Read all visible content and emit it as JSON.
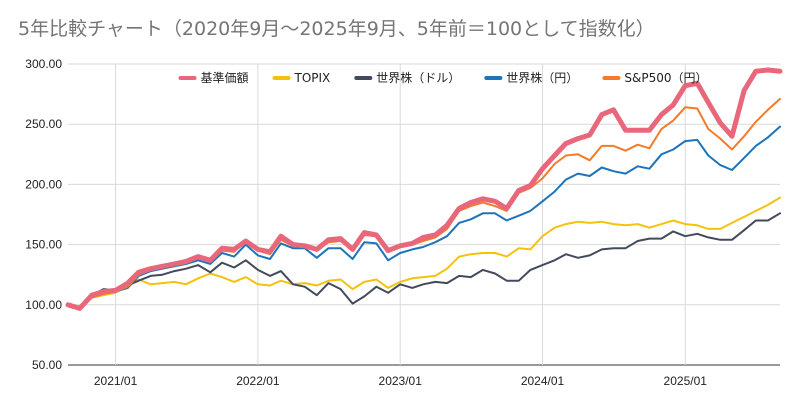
{
  "chart_data": {
    "type": "line",
    "title": "5年比較チャート（2020年9月〜2025年9月、5年前＝100として指数化）",
    "ylim": [
      50,
      300
    ],
    "y_ticks": [
      50,
      100,
      150,
      200,
      250,
      300
    ],
    "y_tick_labels": [
      "50.00",
      "100.00",
      "150.00",
      "200.00",
      "250.00",
      "300.00"
    ],
    "x_ticks": [
      "2021-01",
      "2022-01",
      "2023-01",
      "2024-01",
      "2025-01"
    ],
    "x_tick_labels": [
      "2021/01",
      "2022/01",
      "2023/01",
      "2024/01",
      "2025/01"
    ],
    "grid": true,
    "legend": "top",
    "x": [
      "2020-09",
      "2020-10",
      "2020-11",
      "2020-12",
      "2021-01",
      "2021-02",
      "2021-03",
      "2021-04",
      "2021-05",
      "2021-06",
      "2021-07",
      "2021-08",
      "2021-09",
      "2021-10",
      "2021-11",
      "2021-12",
      "2022-01",
      "2022-02",
      "2022-03",
      "2022-04",
      "2022-05",
      "2022-06",
      "2022-07",
      "2022-08",
      "2022-09",
      "2022-10",
      "2022-11",
      "2022-12",
      "2023-01",
      "2023-02",
      "2023-03",
      "2023-04",
      "2023-05",
      "2023-06",
      "2023-07",
      "2023-08",
      "2023-09",
      "2023-10",
      "2023-11",
      "2023-12",
      "2024-01",
      "2024-02",
      "2024-03",
      "2024-04",
      "2024-05",
      "2024-06",
      "2024-07",
      "2024-08",
      "2024-09",
      "2024-10",
      "2024-11",
      "2024-12",
      "2025-01",
      "2025-02",
      "2025-03",
      "2025-04",
      "2025-05",
      "2025-06",
      "2025-07",
      "2025-08",
      "2025-09"
    ],
    "series": [
      {
        "name": "基準価額",
        "color": "#e8677a",
        "width": 5,
        "values": [
          100,
          97,
          108,
          111,
          112,
          118,
          127,
          130,
          132,
          134,
          136,
          140,
          137,
          147,
          146,
          153,
          146,
          144,
          157,
          150,
          149,
          146,
          154,
          155,
          146,
          160,
          158,
          145,
          149,
          151,
          156,
          158,
          166,
          180,
          185,
          188,
          186,
          180,
          195,
          199,
          213,
          224,
          234,
          238,
          241,
          258,
          262,
          245,
          245,
          245,
          258,
          266,
          282,
          284,
          268,
          251,
          240,
          278,
          294,
          295,
          294
        ]
      },
      {
        "name": "TOPIX",
        "color": "#f4c20d",
        "width": 2,
        "values": [
          100,
          97,
          106,
          108,
          110,
          116,
          121,
          117,
          118,
          119,
          117,
          122,
          126,
          123,
          119,
          123,
          117,
          116,
          120,
          117,
          118,
          116,
          120,
          121,
          113,
          119,
          121,
          114,
          119,
          122,
          123,
          124,
          130,
          140,
          142,
          143,
          143,
          140,
          147,
          146,
          157,
          164,
          167,
          169,
          168,
          169,
          167,
          166,
          167,
          164,
          167,
          170,
          167,
          166,
          163,
          163,
          168,
          173,
          178,
          183,
          189
        ]
      },
      {
        "name": "世界株（ドル）",
        "color": "#434a5b",
        "width": 2,
        "values": [
          100,
          97,
          108,
          113,
          112,
          116,
          120,
          124,
          125,
          128,
          130,
          133,
          127,
          135,
          131,
          137,
          129,
          124,
          128,
          117,
          115,
          108,
          118,
          113,
          101,
          107,
          115,
          110,
          117,
          114,
          117,
          119,
          118,
          124,
          123,
          129,
          126,
          120,
          120,
          129,
          133,
          137,
          142,
          139,
          141,
          146,
          147,
          147,
          153,
          155,
          155,
          161,
          157,
          159,
          156,
          154,
          154,
          162,
          170,
          170,
          176
        ]
      },
      {
        "name": "世界株（円）",
        "color": "#1e74ba",
        "width": 2,
        "values": [
          100,
          96,
          106,
          110,
          111,
          114,
          124,
          128,
          130,
          132,
          134,
          137,
          134,
          143,
          140,
          150,
          141,
          138,
          151,
          147,
          147,
          139,
          147,
          147,
          138,
          152,
          151,
          137,
          143,
          146,
          148,
          152,
          157,
          168,
          171,
          176,
          176,
          170,
          174,
          178,
          186,
          194,
          204,
          209,
          207,
          214,
          211,
          209,
          215,
          213,
          225,
          229,
          236,
          237,
          224,
          216,
          212,
          222,
          232,
          239,
          248
        ]
      },
      {
        "name": "S&P500（円）",
        "color": "#f37b29",
        "width": 2,
        "values": [
          100,
          97,
          106,
          109,
          111,
          115,
          125,
          129,
          131,
          133,
          136,
          139,
          136,
          145,
          144,
          153,
          145,
          142,
          154,
          149,
          149,
          145,
          152,
          153,
          145,
          158,
          157,
          145,
          148,
          150,
          153,
          156,
          163,
          178,
          182,
          185,
          182,
          178,
          193,
          197,
          205,
          217,
          224,
          225,
          220,
          232,
          232,
          228,
          233,
          230,
          246,
          253,
          264,
          263,
          246,
          238,
          229,
          240,
          252,
          262,
          271
        ]
      }
    ]
  }
}
